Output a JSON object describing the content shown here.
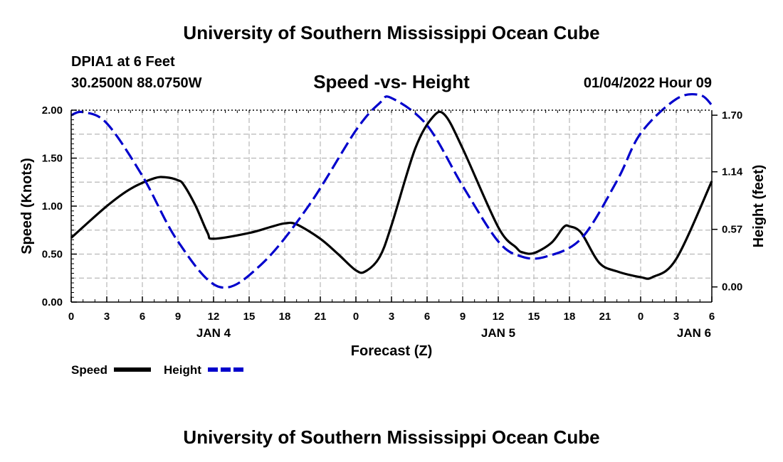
{
  "page": {
    "title": "University of Southern Mississippi Ocean Cube",
    "footer_title": "University of Southern Mississippi Ocean Cube",
    "station": "DPIA1 at 6 Feet",
    "coords": "30.2500N  88.0750W",
    "subtitle": "Speed -vs- Height",
    "run_time": "01/04/2022 Hour 09"
  },
  "chart_data": {
    "type": "line",
    "title": "Speed -vs- Height",
    "xlabel": "Forecast (Z)",
    "ylabel": "Speed (Knots)",
    "y2label": "Height (feet)",
    "x_hours_range": [
      0,
      54
    ],
    "ylim": [
      0,
      2.0
    ],
    "y2lim": [
      -0.15,
      1.75
    ],
    "grid": true,
    "legend_position": "bottom-left",
    "y_ticks": [
      0.0,
      0.5,
      1.0,
      1.5,
      2.0
    ],
    "y_tick_labels": [
      "0.00",
      "0.50",
      "1.00",
      "1.50",
      "2.00"
    ],
    "y2_ticks": [
      0.0,
      0.57,
      1.14,
      1.7
    ],
    "y2_tick_labels": [
      "0.00",
      "0.57",
      "1.14",
      "1.70"
    ],
    "x_ticks": [
      0,
      3,
      6,
      9,
      12,
      15,
      18,
      21,
      24,
      27,
      30,
      33,
      36,
      39,
      42,
      45,
      48,
      51,
      54
    ],
    "x_tick_labels": [
      "0",
      "3",
      "6",
      "9",
      "12",
      "15",
      "18",
      "21",
      "0",
      "3",
      "6",
      "9",
      "12",
      "15",
      "18",
      "21",
      "0",
      "3",
      "6"
    ],
    "date_labels": [
      {
        "hour": 12,
        "label": "JAN 4"
      },
      {
        "hour": 36,
        "label": "JAN 5"
      },
      {
        "hour": 52.5,
        "label": "JAN 6"
      }
    ],
    "series": [
      {
        "name": "Speed",
        "color": "#000000",
        "dash": "solid",
        "axis": "left",
        "x": [
          0,
          3,
          5,
          7,
          8,
          9,
          9.5,
          10.5,
          11.5,
          12,
          15,
          17,
          18,
          19,
          21,
          22.5,
          24,
          24.8,
          26,
          27,
          29,
          30.5,
          31.5,
          33,
          36,
          37.5,
          38,
          39,
          40.5,
          41.5,
          42,
          43,
          44.5,
          46,
          48,
          49,
          51,
          54
        ],
        "values": [
          0.67,
          1.0,
          1.18,
          1.29,
          1.3,
          1.27,
          1.22,
          1.0,
          0.72,
          0.66,
          0.72,
          0.79,
          0.82,
          0.81,
          0.66,
          0.5,
          0.33,
          0.32,
          0.47,
          0.8,
          1.6,
          1.93,
          1.95,
          1.6,
          0.78,
          0.57,
          0.52,
          0.51,
          0.62,
          0.78,
          0.79,
          0.72,
          0.41,
          0.32,
          0.26,
          0.26,
          0.45,
          1.26
        ]
      },
      {
        "name": "Height",
        "color": "#0000cc",
        "dash": "dashed",
        "axis": "right",
        "x": [
          0,
          1,
          3,
          6,
          9,
          12.5,
          16,
          20,
          24,
          26,
          27,
          30,
          33,
          36,
          38,
          40,
          43,
          46,
          48,
          51,
          53,
          54
        ],
        "values": [
          1.7,
          1.73,
          1.62,
          1.1,
          0.45,
          0.0,
          0.22,
          0.8,
          1.55,
          1.82,
          1.87,
          1.6,
          1.0,
          0.45,
          0.3,
          0.3,
          0.48,
          1.05,
          1.52,
          1.86,
          1.9,
          1.8
        ]
      }
    ]
  },
  "legend": {
    "speed_label": "Speed",
    "height_label": "Height"
  }
}
